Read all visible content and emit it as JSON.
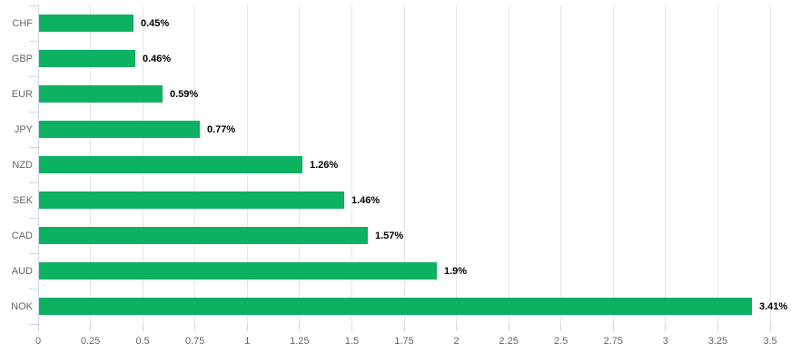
{
  "chart_data": {
    "type": "bar",
    "orientation": "horizontal",
    "title": "",
    "xlabel": "",
    "ylabel": "",
    "categories": [
      "CHF",
      "GBP",
      "EUR",
      "JPY",
      "NZD",
      "SEK",
      "CAD",
      "AUD",
      "NOK"
    ],
    "values": [
      0.45,
      0.46,
      0.59,
      0.77,
      1.26,
      1.46,
      1.57,
      1.9,
      3.41
    ],
    "data_labels": [
      "0.45%",
      "0.46%",
      "0.59%",
      "0.77%",
      "1.26%",
      "1.46%",
      "1.57%",
      "1.9%",
      "3.41%"
    ],
    "xlim": [
      0,
      3.5
    ],
    "x_ticks": [
      0,
      0.25,
      0.5,
      0.75,
      1,
      1.25,
      1.5,
      1.75,
      2,
      2.25,
      2.5,
      2.75,
      3,
      3.25,
      3.5
    ],
    "x_tick_labels": [
      "0",
      "0.25",
      "0.5",
      "0.75",
      "1",
      "1.25",
      "1.5",
      "1.75",
      "2",
      "2.25",
      "2.5",
      "2.75",
      "3",
      "3.25",
      "3.5"
    ],
    "grid": true,
    "legend": false,
    "colors": {
      "bar": "#0cb261",
      "grid": "#e6e6e6",
      "axis_line": "#ccd6eb",
      "tick": "#ccd6eb",
      "axis_label": "#666666",
      "data_label": "#000000",
      "background": "#ffffff"
    }
  }
}
